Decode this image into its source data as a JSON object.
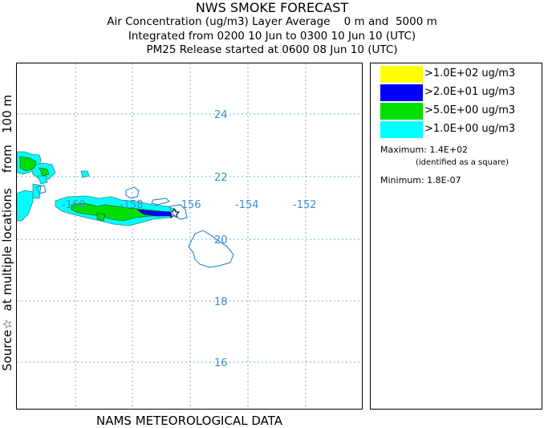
{
  "header": {
    "title": "NWS SMOKE FORECAST",
    "line1": "Air Concentration (ug/m3) Layer Average    0 m and  5000 m",
    "line2": "Integrated from 0200 10 Jun to 0300 10 Jun 10 (UTC)",
    "line3": "PM25 Release started at 0600 08 Jun 10 (UTC)"
  },
  "side_label": "Source☆  at multiple locations    from   100 m",
  "bottom_label": "NAMS METEOROLOGICAL DATA",
  "map": {
    "lat_ticks": [
      "24",
      "22",
      "20",
      "18",
      "16"
    ],
    "lon_ticks": [
      "-160",
      "-158",
      "-156",
      "-154",
      "-152"
    ],
    "grid_color": "#7fb0d8",
    "coast_color": "#3b8fce"
  },
  "legend": {
    "items": [
      {
        "label": ">1.0E+02 ug/m3",
        "color": "#ffff00"
      },
      {
        "label": ">2.0E+01 ug/m3",
        "color": "#0000ff"
      },
      {
        "label": ">5.0E+00 ug/m3",
        "color": "#00e000"
      },
      {
        "label": ">1.0E+00 ug/m3",
        "color": "#00ffff"
      }
    ],
    "maximum": "Maximum: 1.4E+02",
    "maximum_note": "(identified as a square)",
    "minimum": "Minimum: 1.8E-07"
  }
}
